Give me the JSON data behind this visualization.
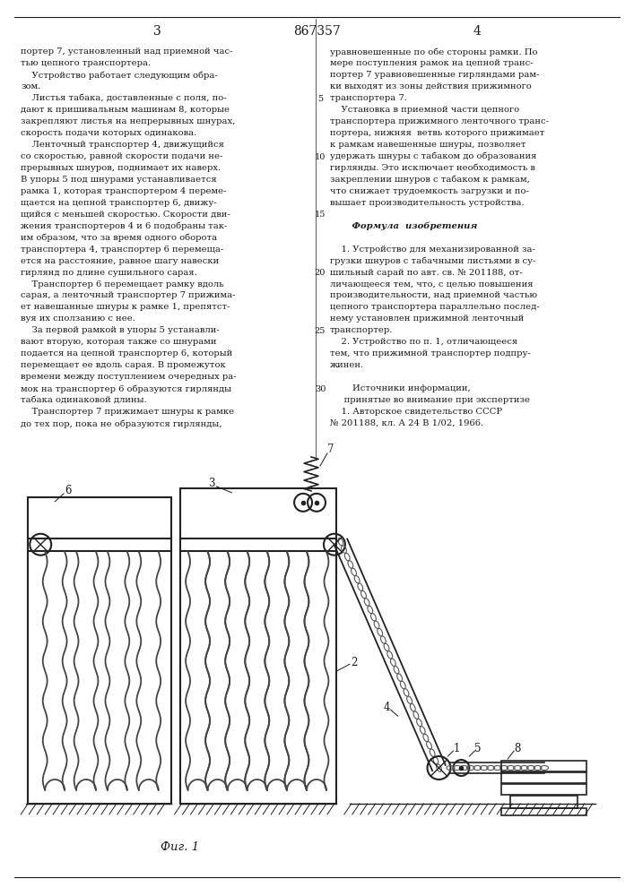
{
  "page_width": 7.07,
  "page_height": 10.0,
  "bg": "#ffffff",
  "tc": "#1a1a1a",
  "header": [
    "3",
    "867357",
    "4"
  ],
  "col1": [
    "портер 7, установленный над приемной час-",
    "тью цепного транспортера.",
    "    Устройство работает следующим обра-",
    "зом.",
    "    Листья табака, доставленные с поля, по-",
    "дают к пришивальным машинам 8, которые",
    "закрепляют листья на непрерывных шнурах,",
    "скорость подачи которых одинакова.",
    "    Ленточный транспортер 4, движущийся",
    "со скоростью, равной скорости подачи не-",
    "прерывных шнуров, поднимает их наверх.",
    "В упоры 5 под шнурами устанавливается",
    "рамка 1, которая транспортером 4 переме-",
    "щается на цепной транспортер 6, движу-",
    "щийся с меньшей скоростью. Скорости дви-",
    "жения транспортеров 4 и 6 подобраны так-",
    "им образом, что за время одного оборота",
    "транспортера 4, транспортер 6 перемеща-",
    "ется на расстояние, равное шагу навески",
    "гирлянд по длине сушильного сарая.",
    "    Транспортер 6 перемещает рамку вдоль",
    "сарая, а ленточный транспортер 7 прижима-",
    "ет навешанные шнуры к рамке 1, препятст-",
    "вуя их сползанию с нее.",
    "    За первой рамкой в упоры 5 устанавли-",
    "вают вторую, которая также со шнурами",
    "подается на цепной транспортер 6, который",
    "перемещает ее вдоль сарая. В промежуток",
    "времени между поступлением очередных ра-",
    "мок на транспортер 6 образуются гирлянды",
    "табака одинаковой длины.",
    "    Транспортер 7 прижимает шнуры к рамке",
    "до тех пор, пока не образуются гирлянды,"
  ],
  "col2": [
    "уравновешенные по обе стороны рамки. По",
    "мере поступления рамок на цепной транс-",
    "портер 7 уравновешенные гирляндами рам-",
    "ки выходят из зоны действия прижимного",
    "транспортера 7.",
    "    Установка в приемной части цепного",
    "транспортера прижимного ленточного транс-",
    "портера, нижняя  ветвь которого прижимает",
    "к рамкам навешенные шнуры, позволяет",
    "удержать шнуры с табаком до образования",
    "гирлянды. Это исключает необходимость в",
    "закреплении шнуров с табаком к рамкам,",
    "что снижает трудоемкость загрузки и по-",
    "вышает производительность устройства.",
    "",
    "       Формула  изобретения",
    "",
    "    1. Устройство для механизированной за-",
    "грузки шнуров с табачными листьями в су-",
    "шильный сарай по авт. св. № 201188, от-",
    "личающееся тем, что, с целью повышения",
    "производительности, над приемной частью",
    "цепного транспортера параллельно послед-",
    "нему установлен прижимной ленточный",
    "транспортер.",
    "    2. Устройство по п. 1, отличающееся",
    "тем, что прижимной транспортер подпру-",
    "жинен.",
    "",
    "        Источники информации,",
    "     принятые во внимание при экспертизе",
    "    1. Авторское свидетельство СССР",
    "№ 201188, кл. А 24 В 1/02, 1966."
  ],
  "line_nums": {
    "4": "5",
    "9": "10",
    "14": "15",
    "19": "20",
    "24": "25",
    "29": "30"
  },
  "fig_caption": "Фиг. 1"
}
